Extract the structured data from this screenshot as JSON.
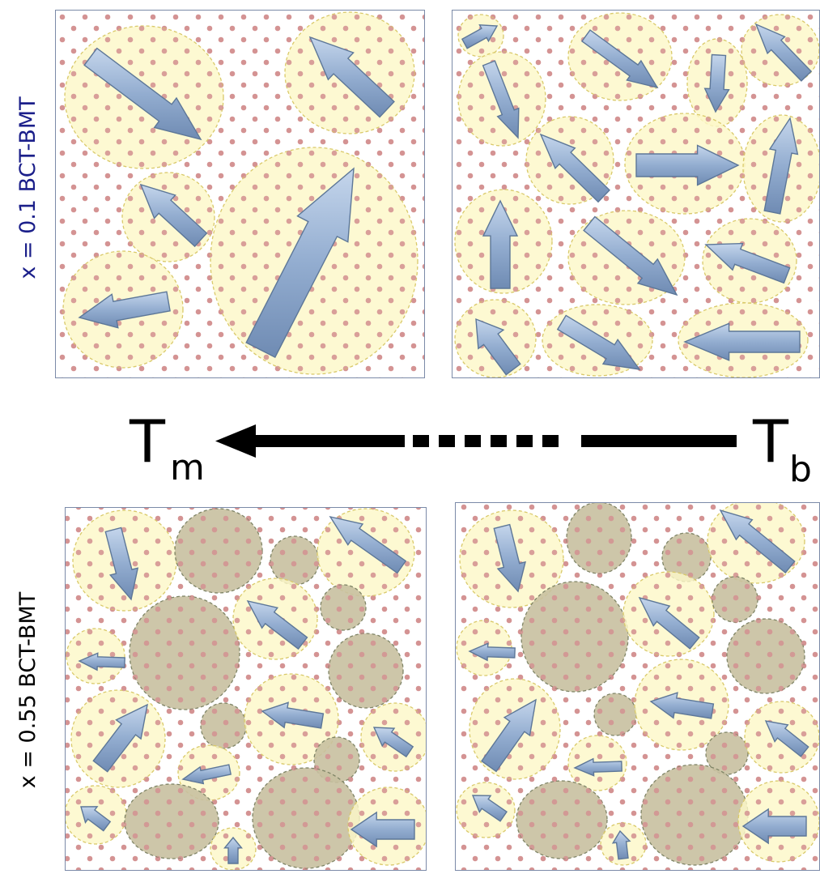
{
  "labels": {
    "row_top": "x = 0.1 BCT-BMT",
    "row_bottom": "x = 0.55 BCT-BMT",
    "temp_left_main": "T",
    "temp_left_sub": "m",
    "temp_right_main": "T",
    "temp_right_sub": "b"
  },
  "colors": {
    "dot": "#d49393",
    "polar_fill": "#fdf8c8",
    "polar_stroke": "#d9c96a",
    "nonpolar_fill": "#c8c0a0",
    "nonpolar_stroke": "#7f8466",
    "arrow_fill": "#93add0",
    "arrow_stroke": "#5d7798",
    "row_top_label": "#1b1f8a",
    "row_bottom_label": "#000000",
    "frame": "#7b8aa8",
    "temp_arrow": "#000000"
  },
  "panels": [
    {
      "id": "top-left",
      "name": "panel-top-left"
    },
    {
      "id": "top-right",
      "name": "panel-top-right"
    },
    {
      "id": "bottom-left",
      "name": "panel-bottom-left"
    },
    {
      "id": "bottom-right",
      "name": "panel-bottom-right"
    }
  ]
}
